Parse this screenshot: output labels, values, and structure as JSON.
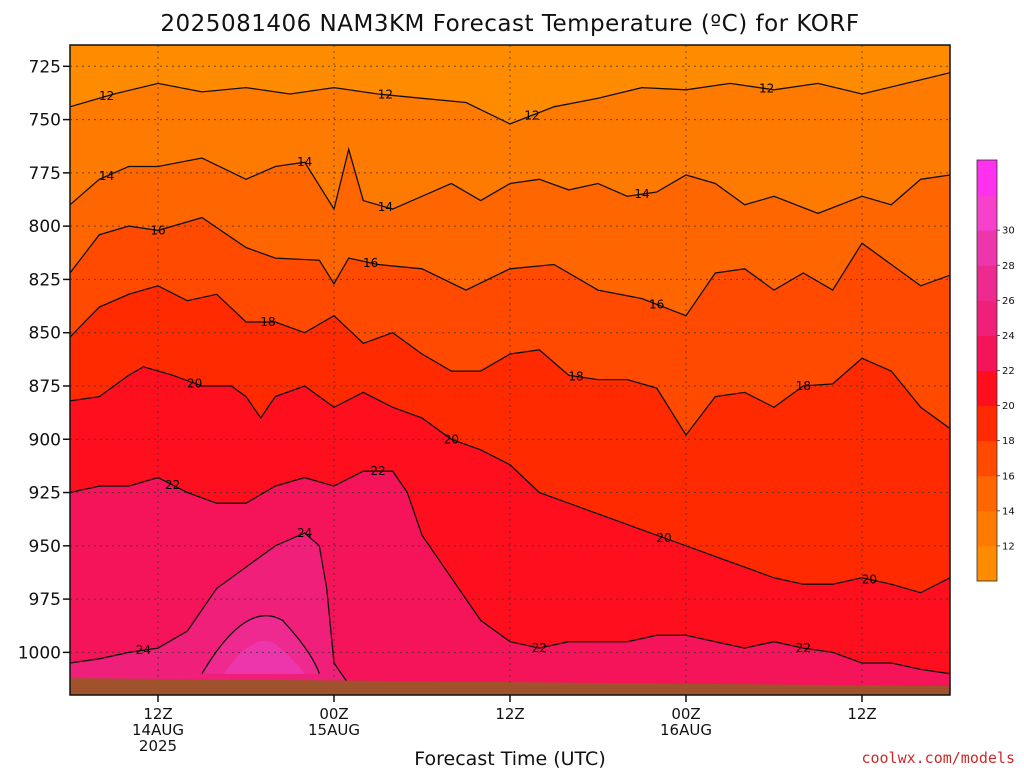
{
  "chart_data": {
    "type": "heatmap",
    "title": "2025081406 NAM3KM Forecast Temperature (ºC) for KORF",
    "xlabel": "Forecast Time (UTC)",
    "ylabel": "",
    "y_axis": {
      "inverted": true,
      "ticks": [
        "725",
        "750",
        "775",
        "800",
        "825",
        "850",
        "875",
        "900",
        "925",
        "950",
        "975",
        "1000"
      ],
      "range": [
        715,
        1020
      ],
      "grid": "dotted"
    },
    "x_axis": {
      "ticks": [
        {
          "hour": 12,
          "lines": [
            "12Z",
            "14AUG",
            "2025"
          ]
        },
        {
          "hour": 24,
          "lines": [
            "00Z",
            "15AUG"
          ]
        },
        {
          "hour": 36,
          "lines": [
            "12Z"
          ]
        },
        {
          "hour": 48,
          "lines": [
            "00Z",
            "16AUG"
          ]
        },
        {
          "hour": 60,
          "lines": [
            "12Z"
          ]
        }
      ],
      "range_hours_since_init": [
        6,
        66
      ],
      "grid": "dotted"
    },
    "colorbar": {
      "ticks": [
        "12",
        "14",
        "16",
        "18",
        "20",
        "22",
        "24",
        "26",
        "28",
        "30"
      ],
      "levels": [
        10,
        12,
        14,
        16,
        18,
        20,
        22,
        24,
        26,
        28,
        30,
        32
      ],
      "colors": [
        "#ff8c00",
        "#ff7a00",
        "#ff6600",
        "#ff4a00",
        "#ff2a00",
        "#ff0f1e",
        "#f5145a",
        "#f0207a",
        "#ee2a90",
        "#ee36ac",
        "#f740cc",
        "#ff30ee"
      ]
    },
    "isotherms": [
      {
        "value": 12,
        "pressure_hpa_at_hour": [
          [
            6,
            744
          ],
          [
            9,
            738
          ],
          [
            12,
            733
          ],
          [
            15,
            737
          ],
          [
            18,
            735
          ],
          [
            21,
            738
          ],
          [
            24,
            735
          ],
          [
            27,
            738
          ],
          [
            30,
            740
          ],
          [
            33,
            742
          ],
          [
            36,
            752
          ],
          [
            39,
            744
          ],
          [
            42,
            740
          ],
          [
            45,
            735
          ],
          [
            48,
            736
          ],
          [
            51,
            733
          ],
          [
            54,
            736
          ],
          [
            57,
            733
          ],
          [
            60,
            738
          ],
          [
            63,
            733
          ],
          [
            66,
            728
          ]
        ]
      },
      {
        "value": 14,
        "pressure_hpa_at_hour": [
          [
            6,
            790
          ],
          [
            8,
            778
          ],
          [
            10,
            772
          ],
          [
            12,
            772
          ],
          [
            15,
            768
          ],
          [
            18,
            778
          ],
          [
            20,
            772
          ],
          [
            22,
            770
          ],
          [
            24,
            792
          ],
          [
            25,
            764
          ],
          [
            26,
            788
          ],
          [
            28,
            792
          ],
          [
            30,
            786
          ],
          [
            32,
            780
          ],
          [
            34,
            788
          ],
          [
            36,
            780
          ],
          [
            38,
            778
          ],
          [
            40,
            783
          ],
          [
            42,
            780
          ],
          [
            44,
            786
          ],
          [
            46,
            784
          ],
          [
            48,
            776
          ],
          [
            50,
            780
          ],
          [
            52,
            790
          ],
          [
            54,
            786
          ],
          [
            57,
            794
          ],
          [
            60,
            786
          ],
          [
            62,
            790
          ],
          [
            64,
            778
          ],
          [
            66,
            776
          ]
        ]
      },
      {
        "value": 16,
        "pressure_hpa_at_hour": [
          [
            6,
            822
          ],
          [
            8,
            804
          ],
          [
            10,
            800
          ],
          [
            12,
            802
          ],
          [
            15,
            796
          ],
          [
            18,
            810
          ],
          [
            20,
            815
          ],
          [
            23,
            816
          ],
          [
            24,
            827
          ],
          [
            25,
            815
          ],
          [
            27,
            818
          ],
          [
            30,
            820
          ],
          [
            33,
            830
          ],
          [
            36,
            820
          ],
          [
            39,
            818
          ],
          [
            42,
            830
          ],
          [
            45,
            834
          ],
          [
            48,
            842
          ],
          [
            50,
            822
          ],
          [
            52,
            820
          ],
          [
            54,
            830
          ],
          [
            56,
            822
          ],
          [
            58,
            830
          ],
          [
            60,
            808
          ],
          [
            62,
            818
          ],
          [
            64,
            828
          ],
          [
            66,
            823
          ]
        ]
      },
      {
        "value": 18,
        "pressure_hpa_at_hour": [
          [
            6,
            852
          ],
          [
            8,
            838
          ],
          [
            10,
            832
          ],
          [
            12,
            828
          ],
          [
            14,
            835
          ],
          [
            16,
            832
          ],
          [
            18,
            845
          ],
          [
            20,
            845
          ],
          [
            22,
            850
          ],
          [
            24,
            842
          ],
          [
            26,
            855
          ],
          [
            28,
            850
          ],
          [
            30,
            860
          ],
          [
            32,
            868
          ],
          [
            34,
            868
          ],
          [
            36,
            860
          ],
          [
            38,
            858
          ],
          [
            40,
            870
          ],
          [
            42,
            872
          ],
          [
            44,
            872
          ],
          [
            46,
            876
          ],
          [
            48,
            898
          ],
          [
            50,
            880
          ],
          [
            52,
            878
          ],
          [
            54,
            885
          ],
          [
            56,
            875
          ],
          [
            58,
            874
          ],
          [
            60,
            862
          ],
          [
            62,
            868
          ],
          [
            64,
            885
          ],
          [
            66,
            895
          ]
        ]
      },
      {
        "value": 20,
        "pressure_hpa_at_hour": [
          [
            6,
            882
          ],
          [
            8,
            880
          ],
          [
            10,
            870
          ],
          [
            11,
            866
          ],
          [
            13,
            870
          ],
          [
            15,
            875
          ],
          [
            17,
            875
          ],
          [
            18,
            880
          ],
          [
            19,
            890
          ],
          [
            20,
            880
          ],
          [
            22,
            875
          ],
          [
            24,
            885
          ],
          [
            26,
            878
          ],
          [
            28,
            885
          ],
          [
            30,
            890
          ],
          [
            32,
            900
          ],
          [
            34,
            905
          ],
          [
            36,
            912
          ],
          [
            38,
            925
          ],
          [
            40,
            930
          ],
          [
            42,
            935
          ],
          [
            44,
            940
          ],
          [
            46,
            945
          ],
          [
            48,
            950
          ],
          [
            50,
            955
          ],
          [
            52,
            960
          ],
          [
            54,
            965
          ],
          [
            56,
            968
          ],
          [
            58,
            968
          ],
          [
            60,
            965
          ],
          [
            62,
            968
          ],
          [
            64,
            972
          ],
          [
            66,
            965
          ]
        ]
      },
      {
        "value": 22,
        "pressure_hpa_at_hour": [
          [
            6,
            925
          ],
          [
            8,
            922
          ],
          [
            10,
            922
          ],
          [
            12,
            918
          ],
          [
            14,
            925
          ],
          [
            16,
            930
          ],
          [
            18,
            930
          ],
          [
            20,
            922
          ],
          [
            22,
            918
          ],
          [
            24,
            922
          ],
          [
            26,
            915
          ],
          [
            28,
            915
          ],
          [
            29,
            925
          ],
          [
            30,
            945
          ],
          [
            32,
            965
          ],
          [
            34,
            985
          ],
          [
            36,
            995
          ],
          [
            38,
            998
          ],
          [
            40,
            995
          ],
          [
            42,
            995
          ],
          [
            44,
            995
          ],
          [
            46,
            992
          ],
          [
            48,
            992
          ],
          [
            50,
            995
          ],
          [
            52,
            998
          ],
          [
            54,
            995
          ],
          [
            56,
            998
          ],
          [
            58,
            1000
          ],
          [
            60,
            1005
          ],
          [
            62,
            1005
          ],
          [
            64,
            1008
          ],
          [
            66,
            1010
          ]
        ]
      },
      {
        "value": 24,
        "pressure_hpa_at_hour": [
          [
            6,
            1005
          ],
          [
            8,
            1003
          ],
          [
            10,
            1000
          ],
          [
            12,
            998
          ],
          [
            14,
            990
          ],
          [
            16,
            970
          ],
          [
            18,
            960
          ],
          [
            20,
            950
          ],
          [
            22,
            944
          ],
          [
            23,
            950
          ],
          [
            23.5,
            970
          ],
          [
            24,
            1005
          ],
          [
            25,
            1015
          ]
        ]
      }
    ],
    "terrain_surface_hpa": 1013
  }
}
